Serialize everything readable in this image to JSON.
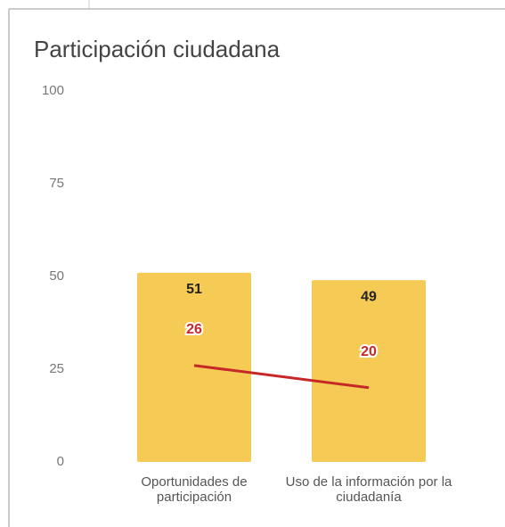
{
  "chart_data": {
    "type": "combo",
    "title": "Participación ciudadana",
    "categories": [
      "Oportunidades de participación",
      "Uso de la información por la ciudadanía"
    ],
    "series": [
      {
        "type": "bar",
        "color": "#f5cb55",
        "values": [
          51,
          49
        ]
      },
      {
        "type": "line",
        "color": "#c62828",
        "values": [
          26,
          20
        ]
      }
    ],
    "ylim": [
      0,
      100
    ],
    "yticks": [
      0,
      25,
      50,
      75,
      100
    ],
    "grid": false
  }
}
